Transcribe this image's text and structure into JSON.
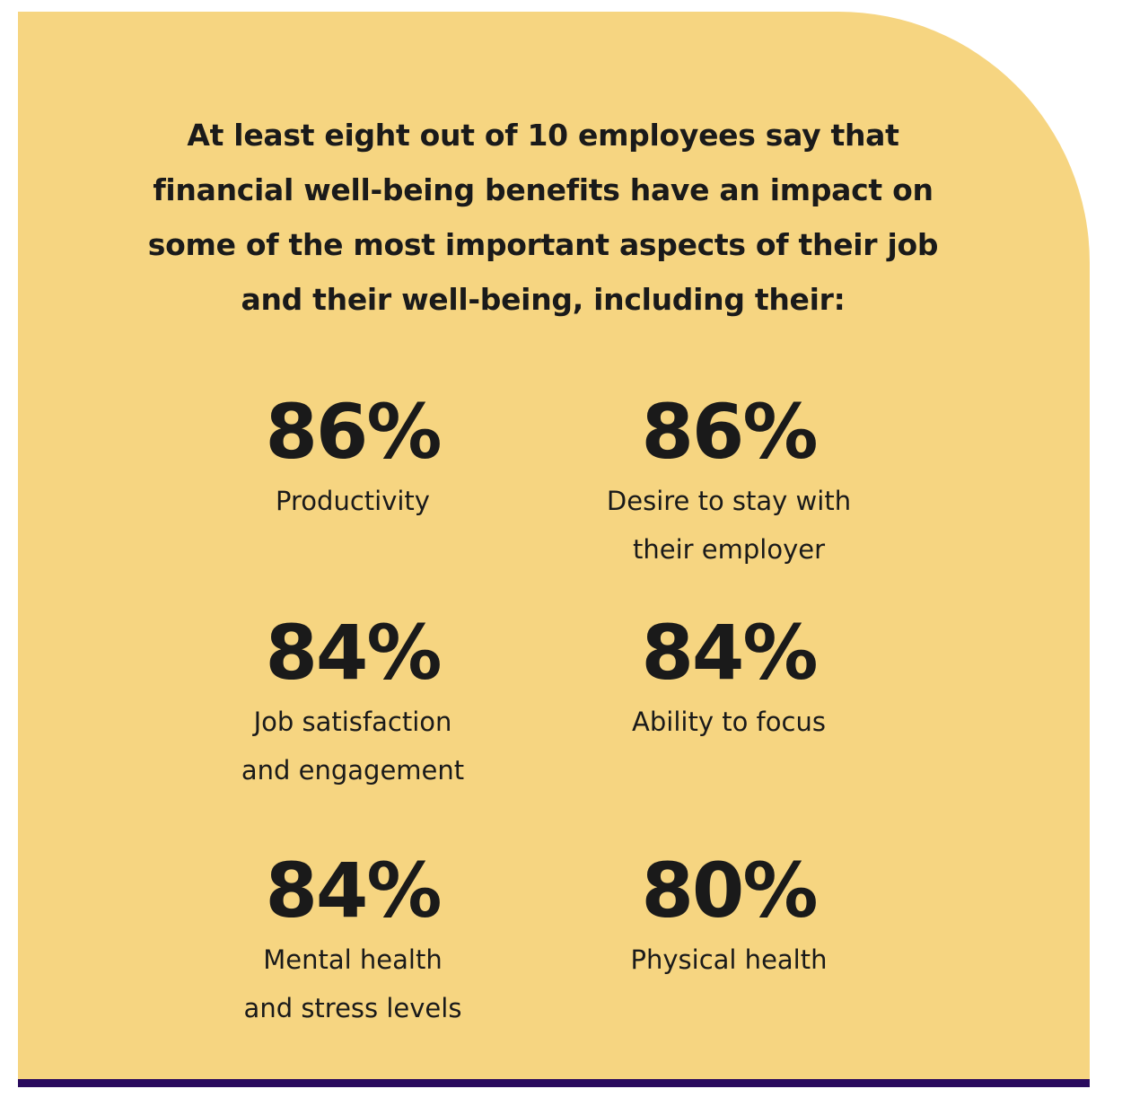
{
  "card": {
    "background_color": "#f6d581",
    "rule_color": "#2a0b5e",
    "intro_text": "At least eight out of 10 employees say that financial well-being benefits have an impact on some of the most important aspects of their job and their well-being, including their:"
  },
  "stats": [
    {
      "value": "86%",
      "label": "Productivity"
    },
    {
      "value": "86%",
      "label": "Desire to stay with\ntheir employer"
    },
    {
      "value": "84%",
      "label": "Job satisfaction\nand engagement"
    },
    {
      "value": "84%",
      "label": "Ability to focus"
    },
    {
      "value": "84%",
      "label": "Mental health\nand stress levels"
    },
    {
      "value": "80%",
      "label": "Physical health"
    }
  ]
}
